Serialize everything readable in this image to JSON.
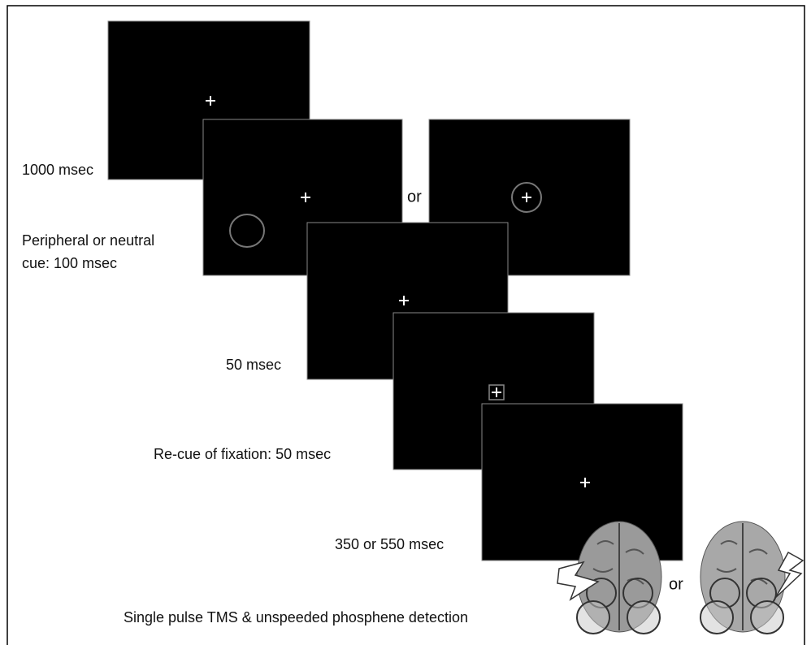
{
  "steps": [
    {
      "label": "1000 msec"
    },
    {
      "label_lines": [
        "Peripheral or neutral",
        "cue: 100 msec"
      ],
      "alternative": "or"
    },
    {
      "label": "50 msec"
    },
    {
      "label": "Re-cue of fixation: 50 msec"
    },
    {
      "label": "350 or 550 msec"
    },
    {
      "label": "Single pulse TMS & unspeeded phosphene detection",
      "alternative": "or"
    }
  ]
}
